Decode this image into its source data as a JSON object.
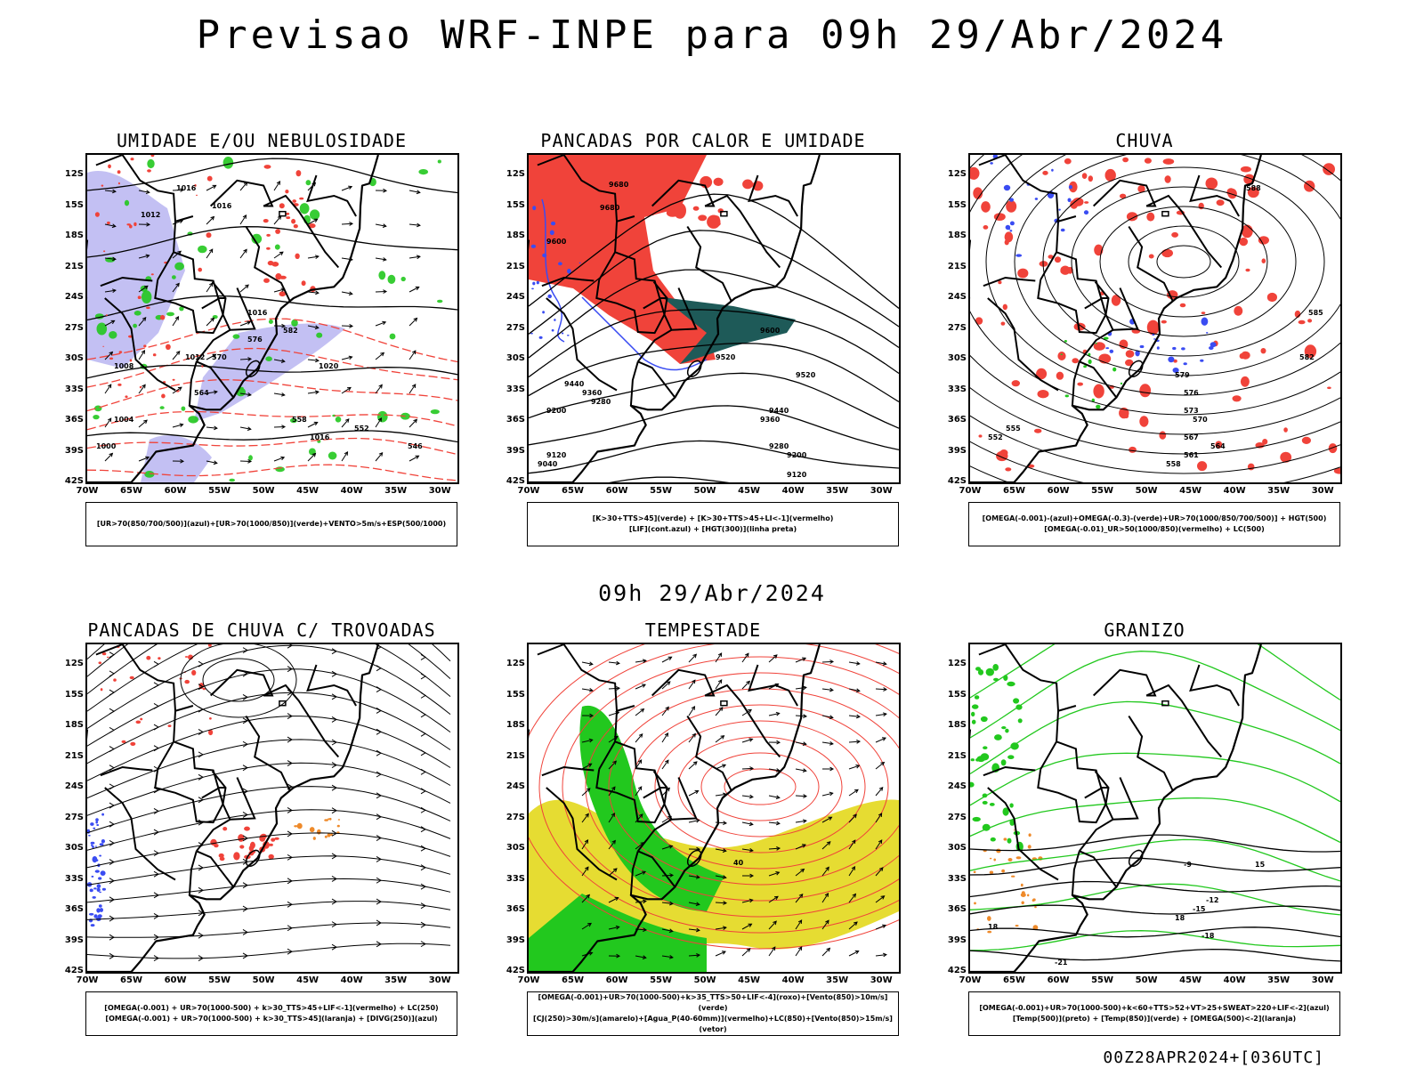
{
  "title": "Previsao WRF-INPE  para 09h 29/Abr/2024",
  "subtitle": "09h 29/Abr/2024",
  "footer": "00Z28APR2024+[036UTC]",
  "axes": {
    "lat_labels": [
      "12S",
      "15S",
      "18S",
      "21S",
      "24S",
      "27S",
      "30S",
      "33S",
      "36S",
      "39S",
      "42S"
    ],
    "lon_labels": [
      "70W",
      "65W",
      "60W",
      "55W",
      "50W",
      "45W",
      "40W",
      "35W",
      "30W"
    ]
  },
  "colors": {
    "red": "#f0433a",
    "green": "#22c81e",
    "blue": "#3a4cf2",
    "lavender": "#b4b0f0",
    "yellow": "#e6dc32",
    "teal": "#1e5a58",
    "orange": "#ee8a2a"
  },
  "panels": [
    {
      "title": "UMIDADE E/OU NEBULOSIDADE",
      "legend": [
        "[UR>70(850/700/500)](azul)+[UR>70(1000/850)](verde)+VENTO>5m/s+ESP(500/1000)"
      ],
      "labels": [
        "1016",
        "1012",
        "1016",
        "1016",
        "1012",
        "1008",
        "1020",
        "1016",
        "1004",
        "1000",
        "564",
        "570",
        "576",
        "582",
        "558",
        "552",
        "546"
      ]
    },
    {
      "title": "PANCADAS POR CALOR E UMIDADE",
      "legend": [
        "[K>30+TTS>45](verde) + [K>30+TTS>45+LI<-1](vermelho)",
        "[LIF](cont.azul) + [HGT(300)](linha preta)"
      ],
      "labels": [
        "9680",
        "9680",
        "9600",
        "9520",
        "9440",
        "9360",
        "9280",
        "9200",
        "9120",
        "9040",
        "9600",
        "9520",
        "9440",
        "9360",
        "9280",
        "9200",
        "9120"
      ]
    },
    {
      "title": "CHUVA",
      "legend": [
        "[OMEGA(-0.001)-(azul)+OMEGA(-0.3)-(verde)+UR>70(1000/850/700/500)] + HGT(500)",
        "[OMEGA(-0.01)_UR>50(1000/850)(vermelho) + LC(500)"
      ],
      "labels": [
        "588",
        "585",
        "582",
        "579",
        "576",
        "573",
        "570",
        "567",
        "564",
        "561",
        "558",
        "555",
        "552"
      ]
    },
    {
      "title": "PANCADAS DE CHUVA C/ TROVOADAS",
      "legend": [
        "[OMEGA(-0.001) + UR>70(1000-500) + k>30_TTS>45+LIF<-1](vermelho) + LC(250)",
        "[OMEGA(-0.001) + UR>70(1000-500) + k>30_TTS>45](laranja) + [DIVG(250)](azul)"
      ],
      "labels": []
    },
    {
      "title": "TEMPESTADE",
      "legend": [
        "[OMEGA(-0.001)+UR>70(1000-500)+k>35_TTS>50+LIF<-4](roxo)+[Vento(850)>10m/s](verde)",
        "[CJ(250)>30m/s](amarelo)+[Agua_P(40-60mm)](vermelho)+LC(850)+[Vento(850)>15m/s](vetor)"
      ],
      "labels": [
        "40"
      ]
    },
    {
      "title": "GRANIZO",
      "legend": [
        "[OMEGA(-0.001)+UR>70(1000-500)+k<60+TTS>52+VT>25+SWEAT>220+LIF<-2](azul)",
        "[Temp(500)](preto) + [Temp(850)](verde) + [OMEGA(500)<-2](laranja)"
      ],
      "labels": [
        "-9",
        "-12",
        "-15",
        "-18",
        "-21",
        "15",
        "18",
        "18"
      ]
    }
  ]
}
